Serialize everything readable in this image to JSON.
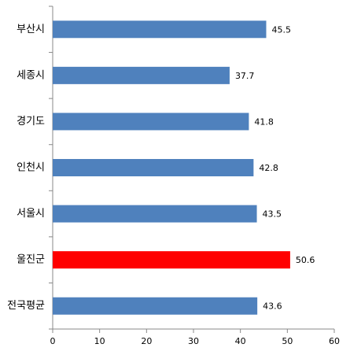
{
  "chart_data": {
    "type": "barh",
    "categories": [
      "부산시",
      "세종시",
      "경기도",
      "인천시",
      "서울시",
      "울진군",
      "전국평균"
    ],
    "values": [
      45.5,
      37.7,
      41.8,
      42.8,
      43.5,
      50.6,
      43.6
    ],
    "colors": [
      "#4f81bd",
      "#4f81bd",
      "#4f81bd",
      "#4f81bd",
      "#4f81bd",
      "#ff0000",
      "#4f81bd"
    ],
    "xlim": [
      0,
      60
    ],
    "xticks": [
      0,
      10,
      20,
      30,
      40,
      50,
      60
    ],
    "grid": false
  }
}
